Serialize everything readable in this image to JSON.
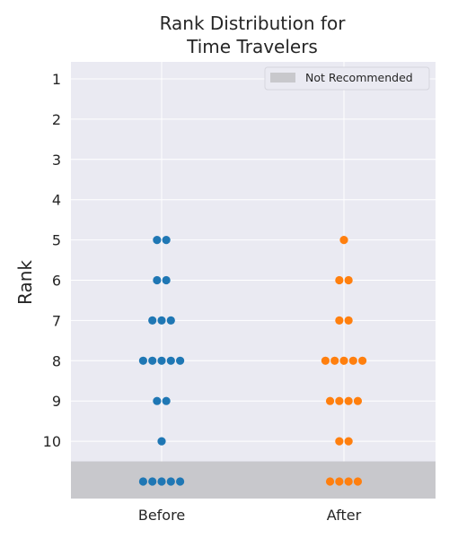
{
  "chart_data": {
    "type": "scatter",
    "subtype": "swarm",
    "title": [
      "Rank Distribution for",
      "Time Travelers"
    ],
    "ylabel": "Rank",
    "xlabel": "",
    "categories": [
      "Before",
      "After"
    ],
    "ytick_labels": [
      "1",
      "2",
      "3",
      "4",
      "5",
      "6",
      "7",
      "8",
      "9",
      "10"
    ],
    "y_axis": "inverted",
    "ylim": [
      0.55,
      11.5
    ],
    "grid": true,
    "legend": {
      "placement": "top-right",
      "entries": [
        {
          "label": "Not Recommended",
          "color": "#c8c8cc"
        }
      ]
    },
    "shaded_region": {
      "label": "Not Recommended",
      "from": 10.5,
      "to": 11.5,
      "color": "#c8c8cc"
    },
    "series": [
      {
        "category": "Before",
        "color": "#1f77b4",
        "values": [
          5,
          5,
          6,
          6,
          7,
          7,
          7,
          8,
          8,
          8,
          8,
          8,
          9,
          9,
          10,
          11,
          11,
          11,
          11,
          11
        ]
      },
      {
        "category": "After",
        "color": "#ff7f0e",
        "values": [
          5,
          6,
          6,
          7,
          7,
          8,
          8,
          8,
          8,
          8,
          9,
          9,
          9,
          9,
          10,
          10,
          11,
          11,
          11,
          11
        ]
      }
    ],
    "colors": {
      "background": "#eaeaf2",
      "grid": "#ffffff",
      "shade": "#c8c8cc"
    }
  }
}
